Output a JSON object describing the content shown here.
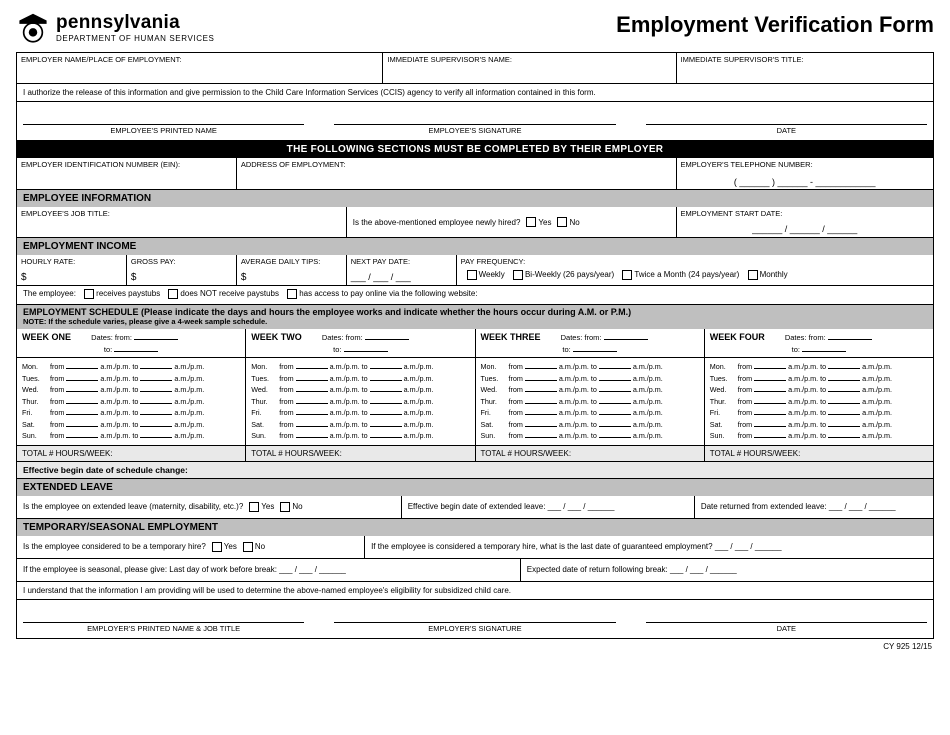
{
  "header": {
    "state": "pennsylvania",
    "dept": "DEPARTMENT OF HUMAN SERVICES",
    "form_title": "Employment Verification Form"
  },
  "top": {
    "employer_name_label": "EMPLOYER NAME/PLACE OF EMPLOYMENT:",
    "supervisor_name_label": "IMMEDIATE SUPERVISOR'S NAME:",
    "supervisor_title_label": "IMMEDIATE SUPERVISOR'S TITLE:"
  },
  "auth_text": "I authorize the release of this information and give permission to the Child Care Information Services (CCIS) agency to verify all information contained in this form.",
  "sig1": {
    "c1": "EMPLOYEE'S PRINTED NAME",
    "c2": "EMPLOYEE'S SIGNATURE",
    "c3": "DATE"
  },
  "banner1": "THE FOLLOWING SECTIONS MUST BE COMPLETED BY THEIR EMPLOYER",
  "emp_ids": {
    "ein": "EMPLOYER IDENTIFICATION NUMBER (EIN):",
    "addr": "ADDRESS OF EMPLOYMENT:",
    "tel": "EMPLOYER'S TELEPHONE NUMBER:",
    "tel_blank": "( ______ )  ______  -  ____________"
  },
  "emp_info_banner": "EMPLOYEE INFORMATION",
  "emp_info": {
    "job_title": "EMPLOYEE'S JOB TITLE:",
    "new_hire_q": "Is the above-mentioned employee newly hired?",
    "yes": "Yes",
    "no": "No",
    "start_date": "EMPLOYMENT START DATE:",
    "start_date_blank": "______ / ______ / ______"
  },
  "income_banner": "EMPLOYMENT INCOME",
  "income": {
    "hourly": "HOURLY RATE:",
    "gross": "GROSS PAY:",
    "tips": "AVERAGE DAILY TIPS:",
    "dollar": "$",
    "next_pay": "NEXT PAY DATE:",
    "next_pay_blank": "___ / ___ / ___",
    "freq_label": "PAY FREQUENCY:",
    "freq_weekly": "Weekly",
    "freq_biweekly": "Bi-Weekly (26 pays/year)",
    "freq_twice": "Twice a Month (24 pays/year)",
    "freq_monthly": "Monthly"
  },
  "paystubs": {
    "prefix": "The employee:",
    "o1": "receives paystubs",
    "o2": "does NOT receive paystubs",
    "o3": "has access to pay online via the following website:"
  },
  "sched_banner": "EMPLOYMENT SCHEDULE (Please indicate the days and hours the employee works and indicate whether the hours occur during A.M. or P.M.)",
  "sched_note": "NOTE: If the schedule varies, please give a 4-week sample schedule.",
  "weeks": {
    "w1": "WEEK ONE",
    "w2": "WEEK TWO",
    "w3": "WEEK THREE",
    "w4": "WEEK FOUR",
    "dates_from": "Dates:  from:",
    "to": "to:",
    "days": [
      "Mon.",
      "Tues.",
      "Wed.",
      "Thur.",
      "Fri.",
      "Sat.",
      "Sun."
    ],
    "from": "from",
    "ampm": "a.m./p.m.",
    "to2": "to",
    "total": "TOTAL # HOURS/WEEK:"
  },
  "eff_date": "Effective begin date of schedule change:",
  "ext_banner": "EXTENDED LEAVE",
  "ext": {
    "q": "Is the employee on extended leave (maternity, disability, etc.)?",
    "yes": "Yes",
    "no": "No",
    "begin": "Effective begin date of extended leave:   ___ / ___ / ______",
    "return": "Date returned from extended leave:  ___ / ___ / ______"
  },
  "temp_banner": "TEMPORARY/SEASONAL EMPLOYMENT",
  "temp": {
    "q1": "Is the employee considered to be a temporary hire?",
    "yes": "Yes",
    "no": "No",
    "q2": "If the employee is considered a temporary hire, what is the last date of guaranteed employment?   ___ / ___ / ______",
    "q3a": "If the employee is seasonal, please give:    Last day of work before break:   ___ / ___ / ______",
    "q3b": "Expected date of return following break:   ___ / ___ / ______"
  },
  "understand": "I understand that the information I am providing will be used to determine the above-named employee's eligibility for subsidized child care.",
  "sig2": {
    "c1": "EMPLOYER'S PRINTED NAME & JOB TITLE",
    "c2": "EMPLOYER'S SIGNATURE",
    "c3": "DATE"
  },
  "footer": "CY 925   12/15"
}
